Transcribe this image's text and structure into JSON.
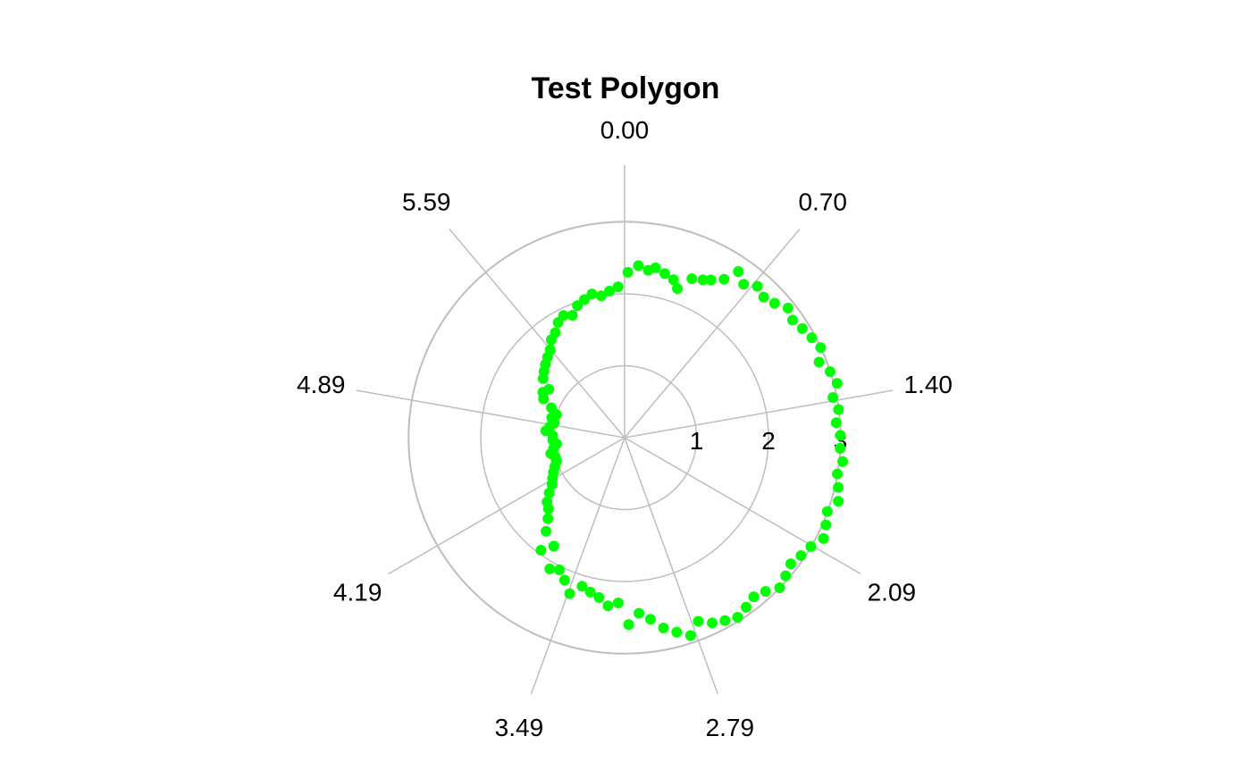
{
  "chart_data": {
    "type": "scatter",
    "coordinate_system": "polar",
    "title": "Test Polygon",
    "angle_unit": "radians",
    "angle_zero": "top",
    "angle_direction": "clockwise",
    "radial_ticks": [
      "1",
      "2",
      "3"
    ],
    "radial_tick_values": [
      1,
      2,
      3
    ],
    "radial_range": [
      0,
      3.6
    ],
    "angular_ticks": [
      "0.00",
      "0.70",
      "1.40",
      "2.09",
      "2.79",
      "3.49",
      "4.19",
      "4.89",
      "5.59"
    ],
    "angular_tick_values": [
      0.0,
      0.698,
      1.396,
      2.094,
      2.793,
      3.491,
      4.189,
      4.887,
      5.585
    ],
    "grid": true,
    "series": [
      {
        "color": "#00ff00",
        "theta": [
          0.02,
          0.08,
          0.14,
          0.18,
          0.24,
          0.3,
          0.34,
          0.4,
          0.46,
          0.5,
          0.56,
          0.6,
          0.66,
          0.72,
          0.78,
          0.84,
          0.9,
          0.96,
          1.02,
          1.08,
          1.14,
          1.2,
          1.26,
          1.32,
          1.38,
          1.44,
          1.5,
          1.56,
          1.62,
          1.68,
          1.74,
          1.8,
          1.86,
          1.92,
          1.98,
          2.04,
          2.1,
          2.16,
          2.22,
          2.28,
          2.34,
          2.4,
          2.46,
          2.52,
          2.58,
          2.64,
          2.7,
          2.76,
          2.82,
          2.88,
          2.94,
          3.0,
          3.06,
          3.12,
          3.18,
          3.24,
          3.3,
          3.36,
          3.42,
          3.48,
          3.54,
          3.6,
          3.66,
          3.72,
          3.78,
          3.84,
          3.9,
          3.96,
          4.02,
          4.08,
          4.14,
          4.2,
          4.26,
          4.32,
          4.38,
          4.44,
          4.5,
          4.56,
          4.62,
          4.68,
          4.74,
          4.8,
          4.86,
          4.92,
          4.98,
          5.04,
          5.1,
          5.16,
          5.22,
          5.28,
          5.34,
          5.4,
          5.46,
          5.52,
          5.58,
          5.64,
          5.7,
          5.76,
          5.82,
          5.88,
          5.94,
          6.0,
          6.06,
          6.12,
          6.18,
          6.24
        ],
        "r": [
          2.3,
          2.4,
          2.35,
          2.4,
          2.35,
          2.3,
          2.2,
          2.4,
          2.45,
          2.5,
          2.6,
          2.8,
          2.7,
          2.8,
          2.75,
          2.8,
          2.9,
          2.85,
          2.9,
          2.95,
          3.0,
          2.9,
          3.0,
          3.05,
          2.95,
          3.0,
          2.95,
          3.0,
          3.0,
          3.05,
          3.0,
          3.05,
          3.1,
          3.0,
          3.05,
          3.1,
          3.0,
          2.95,
          2.9,
          2.95,
          3.0,
          2.9,
          2.85,
          2.9,
          2.95,
          2.9,
          2.85,
          2.75,
          2.9,
          2.8,
          2.7,
          2.55,
          2.45,
          2.6,
          2.3,
          2.35,
          2.25,
          2.2,
          2.15,
          2.3,
          2.15,
          2.05,
          2.1,
          1.8,
          1.95,
          1.7,
          1.55,
          1.45,
          1.4,
          1.3,
          1.2,
          1.15,
          1.1,
          1.05,
          1.0,
          1.0,
          1.05,
          1.0,
          0.95,
          1.0,
          1.0,
          1.1,
          1.05,
          1.0,
          1.05,
          1.0,
          1.1,
          1.25,
          1.3,
          1.25,
          1.4,
          1.45,
          1.5,
          1.55,
          1.6,
          1.7,
          1.75,
          1.85,
          1.9,
          1.85,
          1.95,
          2.0,
          2.05,
          2.0,
          2.05,
          2.1
        ]
      }
    ]
  }
}
